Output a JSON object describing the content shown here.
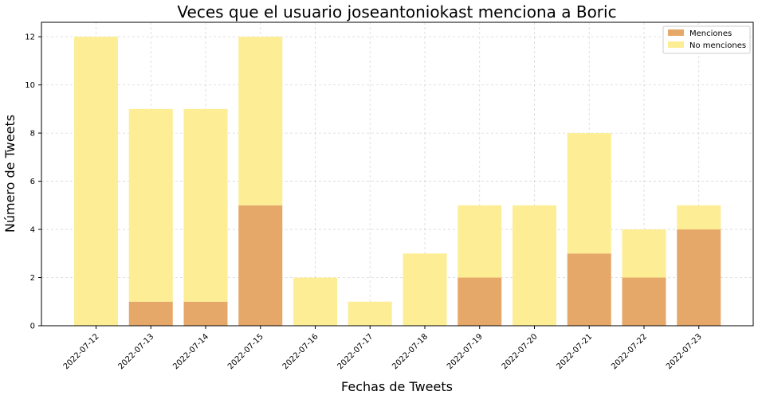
{
  "chart_data": {
    "type": "bar",
    "stacked": true,
    "title": "Veces que el usuario joseantoniokast menciona a Boric",
    "xlabel": "Fechas de Tweets",
    "ylabel": "Número de Tweets",
    "ylim": [
      0,
      12.6
    ],
    "yticks": [
      0,
      2,
      4,
      6,
      8,
      10,
      12
    ],
    "grid": true,
    "legend_position": "top-right",
    "categories": [
      "2022-07-12",
      "2022-07-13",
      "2022-07-14",
      "2022-07-15",
      "2022-07-16",
      "2022-07-17",
      "2022-07-18",
      "2022-07-19",
      "2022-07-20",
      "2022-07-21",
      "2022-07-22",
      "2022-07-23"
    ],
    "series": [
      {
        "name": "Menciones",
        "color": "#e6a869",
        "values": [
          0,
          1,
          1,
          5,
          0,
          0,
          0,
          2,
          0,
          3,
          2,
          4
        ]
      },
      {
        "name": "No menciones",
        "color": "#fdee95",
        "values": [
          12,
          8,
          8,
          7,
          2,
          1,
          3,
          3,
          5,
          5,
          2,
          1
        ]
      }
    ]
  }
}
